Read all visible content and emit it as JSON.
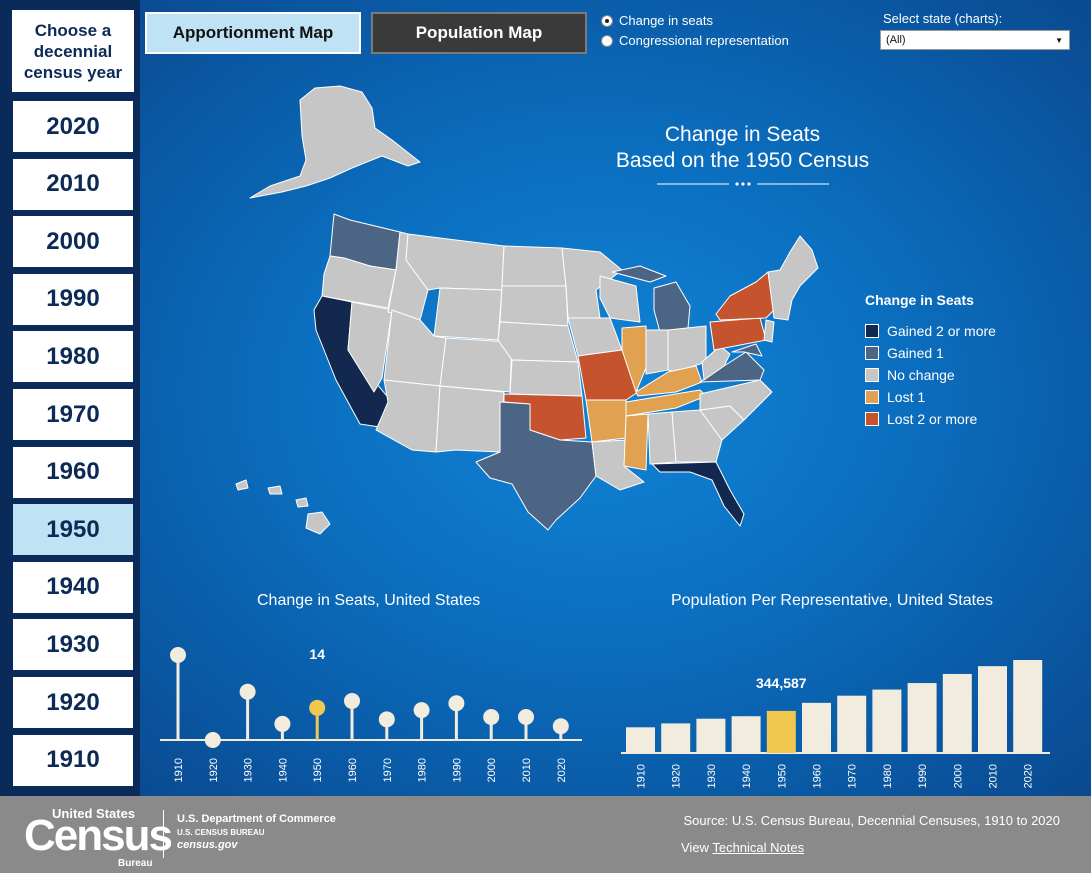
{
  "year_panel": {
    "header": "Choose a decennial census year",
    "years": [
      "2020",
      "2010",
      "2000",
      "1990",
      "1980",
      "1970",
      "1960",
      "1950",
      "1940",
      "1930",
      "1920",
      "1910"
    ],
    "selected": "1950"
  },
  "top_buttons": {
    "apportionment": "Apportionment Map",
    "population": "Population Map"
  },
  "radio": {
    "change": "Change in seats",
    "congressional": "Congressional representation",
    "selected": "change"
  },
  "state_select": {
    "label": "Select state (charts):",
    "value": "(All)"
  },
  "map": {
    "title_line1": "Change in Seats",
    "title_line2": "Based on the 1950 Census"
  },
  "legend": {
    "title": "Change in Seats",
    "items": [
      {
        "label": "Gained 2 or more",
        "color": "#13284f"
      },
      {
        "label": "Gained 1",
        "color": "#4d6584"
      },
      {
        "label": "No change",
        "color": "#c6c6c6"
      },
      {
        "label": "Lost 1",
        "color": "#e0a150"
      },
      {
        "label": "Lost 2 or more",
        "color": "#c4532e"
      }
    ]
  },
  "colors": {
    "bar": "#f1ecdd",
    "highlight": "#f0c84f"
  },
  "chart_data": [
    {
      "type": "lollipop",
      "title": "Change in Seats, United States",
      "categories": [
        "1910",
        "1920",
        "1930",
        "1940",
        "1950",
        "1960",
        "1970",
        "1980",
        "1990",
        "2000",
        "2010",
        "2020"
      ],
      "values": [
        37,
        0,
        21,
        7,
        14,
        17,
        9,
        13,
        16,
        10,
        10,
        6
      ],
      "highlight": "1950",
      "highlight_label": "14"
    },
    {
      "type": "bar",
      "title": "Population Per Representative, United States",
      "categories": [
        "1910",
        "1920",
        "1930",
        "1940",
        "1950",
        "1960",
        "1970",
        "1980",
        "1990",
        "2000",
        "2010",
        "2020"
      ],
      "values": [
        210328,
        242267,
        280675,
        301164,
        344587,
        410481,
        469088,
        519235,
        572466,
        646952,
        710767,
        761169
      ],
      "highlight": "1950",
      "highlight_label": "344,587"
    }
  ],
  "footer": {
    "logo_top": "United States",
    "logo_main": "Census",
    "logo_bureau": "Bureau",
    "dept_line1": "U.S. Department of Commerce",
    "dept_line2": "U.S. CENSUS BUREAU",
    "dept_line3": "census.gov",
    "source": "Source: U.S. Census Bureau, Decennial Censuses, 1910 to 2020",
    "view": "View",
    "notes_link": "Technical Notes"
  }
}
